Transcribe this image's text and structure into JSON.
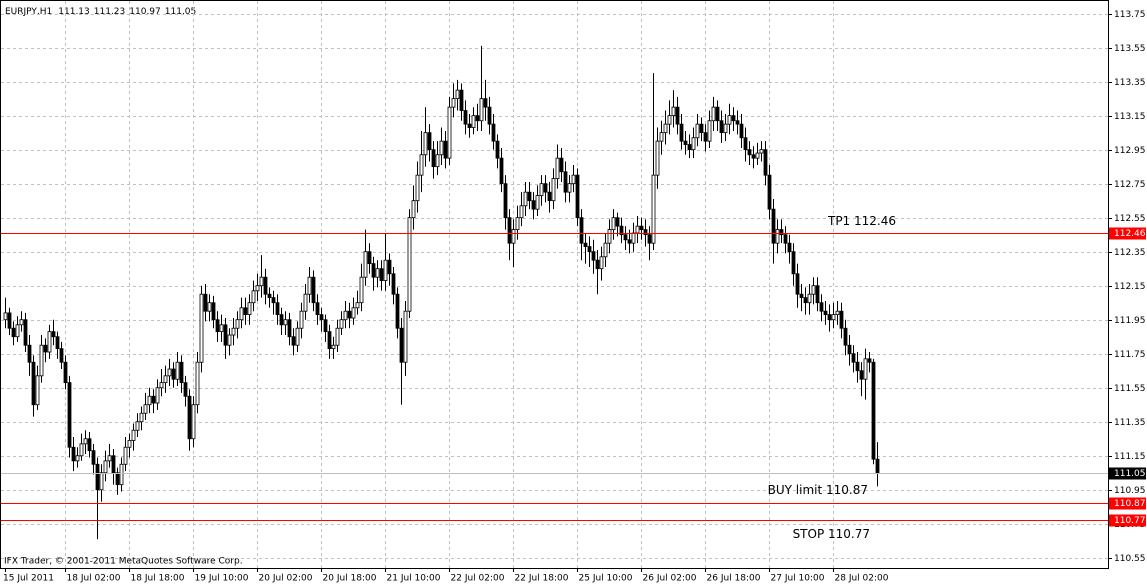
{
  "chart_data": {
    "type": "candlestick",
    "symbol": "EURJPY,H1",
    "footer": "IFX Trader, © 2001-2011 MetaQuotes Software Corp.",
    "color": "#000000",
    "grid": true,
    "grid_color": "#c0c0c0",
    "ylim": [
      110.49,
      113.83
    ],
    "yticks": [
      113.75,
      113.55,
      113.35,
      113.15,
      112.95,
      112.75,
      112.55,
      112.35,
      112.15,
      111.95,
      111.75,
      111.55,
      111.35,
      111.15,
      110.95,
      110.75,
      110.55
    ],
    "xticks": [
      {
        "value": 0,
        "label": "15 Jul 2011"
      },
      {
        "value": 15,
        "label": "18 Jul 02:00"
      },
      {
        "value": 31,
        "label": "18 Jul 18:00"
      },
      {
        "value": 47,
        "label": "19 Jul 10:00"
      },
      {
        "value": 63,
        "label": "20 Jul 02:00"
      },
      {
        "value": 79,
        "label": "20 Jul 18:00"
      },
      {
        "value": 95,
        "label": "21 Jul 10:00"
      },
      {
        "value": 111,
        "label": "22 Jul 02:00"
      },
      {
        "value": 127,
        "label": "22 Jul 18:00"
      },
      {
        "value": 143,
        "label": "25 Jul 10:00"
      },
      {
        "value": 159,
        "label": "26 Jul 02:00"
      },
      {
        "value": 175,
        "label": "26 Jul 18:00"
      },
      {
        "value": 191,
        "label": "27 Jul 10:00"
      },
      {
        "value": 207,
        "label": "28 Jul 02:00"
      }
    ],
    "levels": [
      {
        "label": "TP1 112.46",
        "value": 112.46,
        "color": "#ff0000"
      },
      {
        "label": "BUY limit 110.87",
        "value": 110.87,
        "color": "#ff0000"
      },
      {
        "label": "STOP 110.77",
        "value": 110.77,
        "color": "#ff0000"
      }
    ],
    "open": [
      111.95,
      111.99,
      111.9,
      111.85,
      111.92,
      111.95,
      111.8,
      111.7,
      111.45,
      111.62,
      111.8,
      111.76,
      111.88,
      111.85,
      111.78,
      111.7,
      111.58,
      111.2,
      111.12,
      111.15,
      111.22,
      111.25,
      111.18,
      111.1,
      110.95,
      111.05,
      111.12,
      111.15,
      111.05,
      110.98,
      111.1,
      111.2,
      111.24,
      111.3,
      111.35,
      111.4,
      111.45,
      111.5,
      111.46,
      111.55,
      111.58,
      111.62,
      111.66,
      111.6,
      111.7,
      111.58,
      111.5,
      111.25,
      111.45,
      111.7,
      112.1,
      112.0,
      112.05,
      111.95,
      111.88,
      111.92,
      111.8,
      111.86,
      111.9,
      111.95,
      112.02,
      111.98,
      112.05,
      112.12,
      112.15,
      112.2,
      112.1,
      112.08,
      112.05,
      111.98,
      111.92,
      111.95,
      111.85,
      111.8,
      111.9,
      112.0,
      112.1,
      112.2,
      112.05,
      111.98,
      111.95,
      111.88,
      111.78,
      111.8,
      111.9,
      111.95,
      112.0,
      111.96,
      112.02,
      112.05,
      112.2,
      112.35,
      112.28,
      112.2,
      112.25,
      112.18,
      112.3,
      112.22,
      112.1,
      111.9,
      111.7,
      112.0,
      112.55,
      112.65,
      112.8,
      112.92,
      113.05,
      112.95,
      112.85,
      112.92,
      113.0,
      112.9,
      113.2,
      113.25,
      113.3,
      113.18,
      113.1,
      113.08,
      113.15,
      113.12,
      113.25,
      113.2,
      113.1,
      113.0,
      112.9,
      112.75,
      112.55,
      112.4,
      112.48,
      112.55,
      112.62,
      112.7,
      112.65,
      112.6,
      112.68,
      112.75,
      112.7,
      112.65,
      112.78,
      112.9,
      112.82,
      112.7,
      112.75,
      112.8,
      112.55,
      112.4,
      112.38,
      112.35,
      112.3,
      112.25,
      112.32,
      112.4,
      112.48,
      112.55,
      112.5,
      112.45,
      112.42,
      112.4,
      112.46,
      112.5,
      112.48,
      112.45,
      112.4,
      112.8,
      113.0,
      113.05,
      113.1,
      113.15,
      113.2,
      113.1,
      113.0,
      112.98,
      112.95,
      113.02,
      113.1,
      113.05,
      113.0,
      113.12,
      113.2,
      113.12,
      113.05,
      113.1,
      113.15,
      113.12,
      113.1,
      113.02,
      112.95,
      112.92,
      112.9,
      112.93,
      112.95,
      112.8,
      112.6,
      112.4,
      112.48,
      112.45,
      112.4,
      112.35,
      112.22,
      112.1,
      112.08,
      112.05,
      112.1,
      112.15,
      112.05,
      112.0,
      111.98,
      111.95,
      111.98,
      112.0,
      111.9,
      111.8,
      111.75,
      111.7,
      111.65,
      111.6,
      111.72,
      111.7,
      111.13
    ],
    "high": [
      112.08,
      112.02,
      111.94,
      111.97,
      112.0,
      111.99,
      111.86,
      111.74,
      111.68,
      111.86,
      111.84,
      111.92,
      111.95,
      111.88,
      111.82,
      111.74,
      111.62,
      111.26,
      111.2,
      111.28,
      111.3,
      111.29,
      111.22,
      111.14,
      111.1,
      111.18,
      111.22,
      111.19,
      111.08,
      111.14,
      111.26,
      111.28,
      111.34,
      111.4,
      111.44,
      111.52,
      111.55,
      111.54,
      111.6,
      111.66,
      111.68,
      111.72,
      111.7,
      111.76,
      111.74,
      111.62,
      111.54,
      111.5,
      111.76,
      112.15,
      112.16,
      112.1,
      112.09,
      112.0,
      111.98,
      111.96,
      111.9,
      111.96,
      112.0,
      112.08,
      112.08,
      112.1,
      112.18,
      112.22,
      112.33,
      112.25,
      112.14,
      112.12,
      112.1,
      112.02,
      112.0,
      111.99,
      111.9,
      111.94,
      112.05,
      112.16,
      112.26,
      112.24,
      112.1,
      112.02,
      111.98,
      111.92,
      111.85,
      111.95,
      112.0,
      112.06,
      112.05,
      112.08,
      112.12,
      112.28,
      112.48,
      112.4,
      112.32,
      112.3,
      112.3,
      112.46,
      112.34,
      112.26,
      112.14,
      111.96,
      112.06,
      112.6,
      112.74,
      112.88,
      113.06,
      113.2,
      113.1,
      113.0,
      113.0,
      113.08,
      113.06,
      113.26,
      113.34,
      113.36,
      113.34,
      113.24,
      113.16,
      113.2,
      113.22,
      113.56,
      113.36,
      113.26,
      113.16,
      113.04,
      112.96,
      112.8,
      112.6,
      112.54,
      112.62,
      112.7,
      112.76,
      112.76,
      112.7,
      112.74,
      112.8,
      112.8,
      112.76,
      112.84,
      112.98,
      112.96,
      112.88,
      112.8,
      112.86,
      112.84,
      112.6,
      112.46,
      112.44,
      112.42,
      112.36,
      112.38,
      112.46,
      112.54,
      112.6,
      112.58,
      112.55,
      112.5,
      112.48,
      112.52,
      112.56,
      112.55,
      112.54,
      112.5,
      113.4,
      113.08,
      113.12,
      113.18,
      113.24,
      113.3,
      113.26,
      113.16,
      113.06,
      113.04,
      113.08,
      113.16,
      113.14,
      113.1,
      113.18,
      113.26,
      113.24,
      113.18,
      113.16,
      113.22,
      113.2,
      113.18,
      113.16,
      113.08,
      113.0,
      112.97,
      112.99,
      113.0,
      113.0,
      112.86,
      112.66,
      112.54,
      112.54,
      112.5,
      112.45,
      112.4,
      112.28,
      112.16,
      112.14,
      112.16,
      112.2,
      112.2,
      112.1,
      112.06,
      112.04,
      112.05,
      112.06,
      112.05,
      111.95,
      111.86,
      111.8,
      111.76,
      111.7,
      111.78,
      111.76,
      111.72,
      111.23
    ],
    "low": [
      111.9,
      111.86,
      111.8,
      111.82,
      111.88,
      111.76,
      111.62,
      111.38,
      111.42,
      111.58,
      111.7,
      111.72,
      111.8,
      111.72,
      111.66,
      111.54,
      111.14,
      111.06,
      111.08,
      111.12,
      111.16,
      111.14,
      111.04,
      110.66,
      110.88,
      111.0,
      111.08,
      110.98,
      110.92,
      110.94,
      111.06,
      111.14,
      111.18,
      111.26,
      111.3,
      111.36,
      111.4,
      111.4,
      111.42,
      111.5,
      111.52,
      111.56,
      111.55,
      111.56,
      111.52,
      111.44,
      111.18,
      111.2,
      111.4,
      111.64,
      111.94,
      111.94,
      111.9,
      111.82,
      111.82,
      111.72,
      111.74,
      111.8,
      111.84,
      111.9,
      111.92,
      111.92,
      112.0,
      112.06,
      112.08,
      112.04,
      112.02,
      111.98,
      111.92,
      111.86,
      111.86,
      111.8,
      111.74,
      111.76,
      111.84,
      111.95,
      112.05,
      112.0,
      111.92,
      111.88,
      111.82,
      111.72,
      111.72,
      111.76,
      111.86,
      111.9,
      111.9,
      111.92,
      111.98,
      112.0,
      112.15,
      112.22,
      112.12,
      112.14,
      112.12,
      112.12,
      112.15,
      112.04,
      111.84,
      111.45,
      111.62,
      111.96,
      112.48,
      112.58,
      112.7,
      112.85,
      112.88,
      112.78,
      112.8,
      112.86,
      112.84,
      112.86,
      113.14,
      113.18,
      113.12,
      113.04,
      113.02,
      113.04,
      113.06,
      113.06,
      113.12,
      113.04,
      112.95,
      112.84,
      112.7,
      112.48,
      112.3,
      112.26,
      112.42,
      112.5,
      112.56,
      112.6,
      112.54,
      112.56,
      112.62,
      112.64,
      112.58,
      112.6,
      112.72,
      112.76,
      112.64,
      112.64,
      112.7,
      112.5,
      112.3,
      112.28,
      112.26,
      112.22,
      112.1,
      112.18,
      112.26,
      112.34,
      112.42,
      112.44,
      112.4,
      112.36,
      112.34,
      112.35,
      112.4,
      112.42,
      112.38,
      112.3,
      112.36,
      112.72,
      112.92,
      112.98,
      113.04,
      113.08,
      113.04,
      112.95,
      112.92,
      112.9,
      112.9,
      112.97,
      113.0,
      112.94,
      112.96,
      113.06,
      113.06,
      112.99,
      113.0,
      113.04,
      113.06,
      113.04,
      112.96,
      112.88,
      112.86,
      112.84,
      112.86,
      112.88,
      112.74,
      112.54,
      112.28,
      112.34,
      112.4,
      112.34,
      112.28,
      112.15,
      112.02,
      112.0,
      111.98,
      111.98,
      112.04,
      112.0,
      111.94,
      111.92,
      111.88,
      111.9,
      111.92,
      111.84,
      111.74,
      111.68,
      111.64,
      111.58,
      111.5,
      111.48,
      111.64,
      111.1,
      110.97
    ],
    "close": [
      111.99,
      111.9,
      111.85,
      111.92,
      111.95,
      111.8,
      111.7,
      111.45,
      111.62,
      111.8,
      111.76,
      111.88,
      111.85,
      111.78,
      111.7,
      111.58,
      111.2,
      111.12,
      111.15,
      111.22,
      111.25,
      111.18,
      111.1,
      110.95,
      111.05,
      111.12,
      111.15,
      111.05,
      110.98,
      111.1,
      111.2,
      111.24,
      111.3,
      111.35,
      111.4,
      111.45,
      111.5,
      111.46,
      111.55,
      111.58,
      111.62,
      111.66,
      111.6,
      111.7,
      111.58,
      111.5,
      111.25,
      111.45,
      111.7,
      112.1,
      112.0,
      112.05,
      111.95,
      111.88,
      111.92,
      111.8,
      111.86,
      111.9,
      111.95,
      112.02,
      111.98,
      112.05,
      112.12,
      112.15,
      112.2,
      112.1,
      112.08,
      112.05,
      111.98,
      111.92,
      111.95,
      111.85,
      111.8,
      111.9,
      112.0,
      112.1,
      112.2,
      112.05,
      111.98,
      111.95,
      111.88,
      111.78,
      111.8,
      111.9,
      111.95,
      112.0,
      111.96,
      112.02,
      112.05,
      112.2,
      112.35,
      112.28,
      112.2,
      112.25,
      112.18,
      112.3,
      112.22,
      112.1,
      111.9,
      111.7,
      112.0,
      112.55,
      112.65,
      112.8,
      112.92,
      113.05,
      112.95,
      112.85,
      112.92,
      113.0,
      112.9,
      113.2,
      113.25,
      113.3,
      113.18,
      113.1,
      113.08,
      113.15,
      113.12,
      113.25,
      113.2,
      113.1,
      113.0,
      112.9,
      112.75,
      112.55,
      112.4,
      112.48,
      112.55,
      112.62,
      112.7,
      112.65,
      112.6,
      112.68,
      112.75,
      112.7,
      112.65,
      112.78,
      112.9,
      112.82,
      112.7,
      112.75,
      112.8,
      112.55,
      112.4,
      112.38,
      112.35,
      112.3,
      112.25,
      112.32,
      112.4,
      112.48,
      112.55,
      112.5,
      112.45,
      112.42,
      112.4,
      112.46,
      112.5,
      112.48,
      112.45,
      112.4,
      112.8,
      113.0,
      113.05,
      113.1,
      113.15,
      113.2,
      113.1,
      113.0,
      112.98,
      112.95,
      113.02,
      113.1,
      113.05,
      113.0,
      113.12,
      113.2,
      113.12,
      113.05,
      113.1,
      113.15,
      113.12,
      113.1,
      113.02,
      112.95,
      112.92,
      112.9,
      112.93,
      112.95,
      112.8,
      112.6,
      112.4,
      112.48,
      112.45,
      112.4,
      112.35,
      112.22,
      112.1,
      112.08,
      112.05,
      112.1,
      112.15,
      112.05,
      112.0,
      111.98,
      111.95,
      111.98,
      112.0,
      111.9,
      111.8,
      111.75,
      111.7,
      111.65,
      111.6,
      111.72,
      111.7,
      111.13,
      111.05
    ]
  }
}
